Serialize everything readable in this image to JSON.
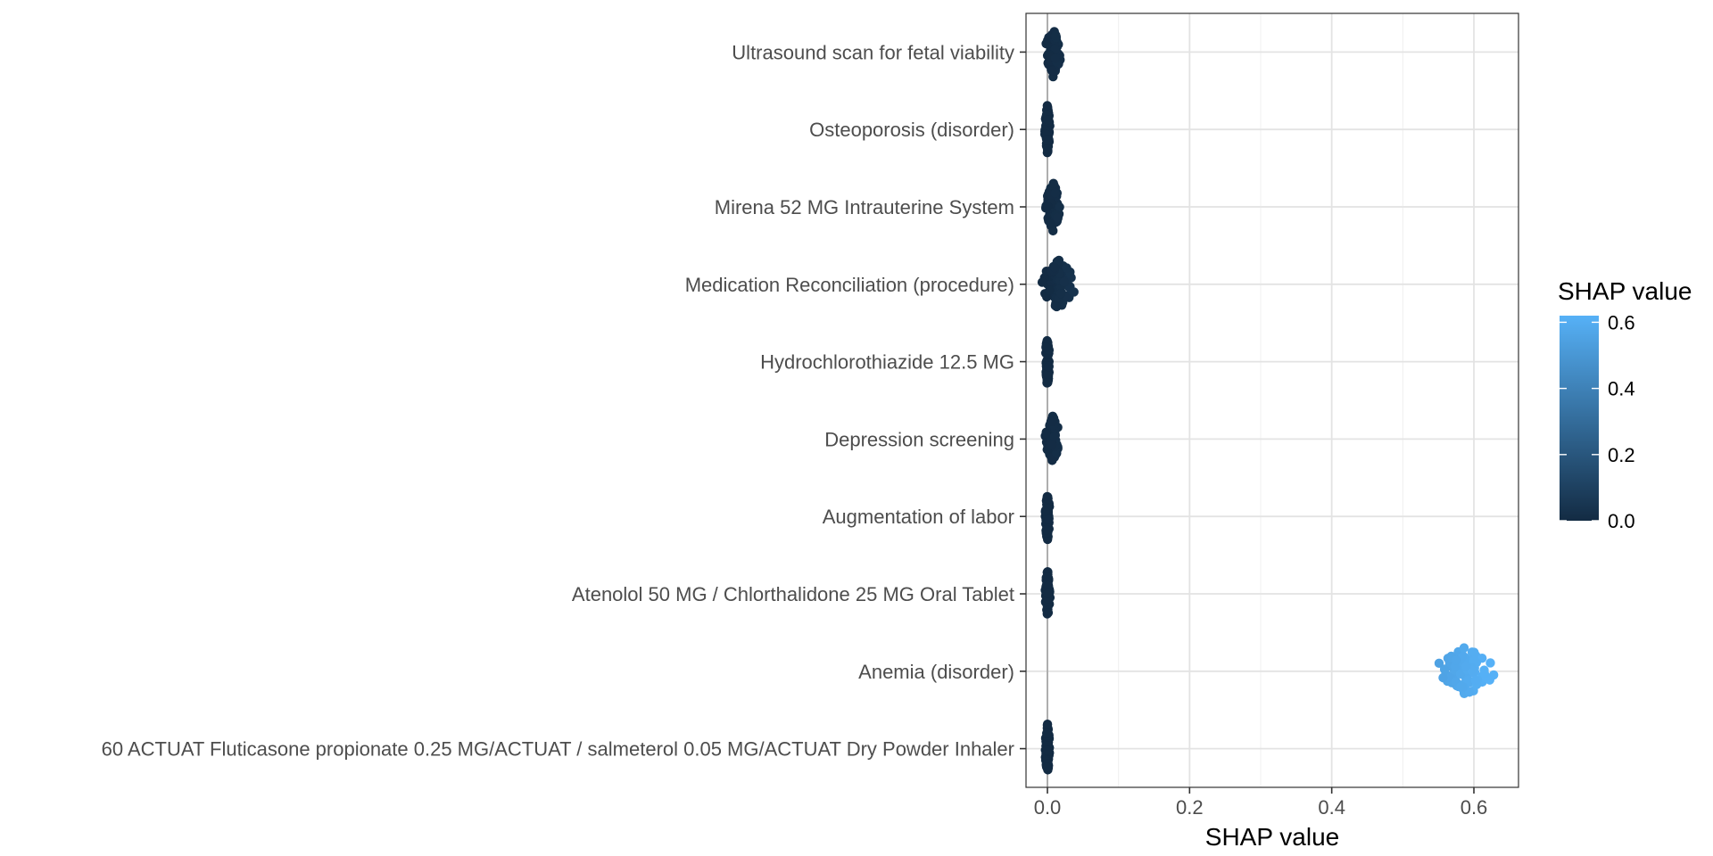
{
  "chart_data": {
    "type": "scatter",
    "subtype": "beeswarm",
    "title": "",
    "xlabel": "SHAP value",
    "ylabel": "",
    "xlim": [
      -0.03,
      0.66
    ],
    "x_ticks": [
      0.0,
      0.2,
      0.4,
      0.6
    ],
    "x_tick_labels": [
      "0.0",
      "0.2",
      "0.4",
      "0.6"
    ],
    "grid": true,
    "reference_line_x": 0.0,
    "legend": {
      "title": "SHAP value",
      "placement": "right",
      "ticks": [
        0.0,
        0.2,
        0.4,
        0.6
      ],
      "tick_labels": [
        "0.0",
        "0.2",
        "0.4",
        "0.6"
      ],
      "color_low": "#132B43",
      "color_high": "#56B1F7"
    },
    "features": [
      {
        "label": "Ultrasound scan for fetal viability",
        "center": 0.008,
        "spread": 0.012
      },
      {
        "label": "Osteoporosis (disorder)",
        "center": 0.0,
        "spread": 0.004
      },
      {
        "label": "Mirena 52 MG Intrauterine System",
        "center": 0.008,
        "spread": 0.012
      },
      {
        "label": "Medication Reconciliation (procedure)",
        "center": 0.015,
        "spread": 0.028
      },
      {
        "label": "Hydrochlorothiazide 12.5 MG",
        "center": 0.0,
        "spread": 0.004
      },
      {
        "label": "Depression screening",
        "center": 0.007,
        "spread": 0.012
      },
      {
        "label": "Augmentation of labor",
        "center": 0.0,
        "spread": 0.004
      },
      {
        "label": "Atenolol 50 MG / Chlorthalidone 25 MG Oral Tablet",
        "center": 0.0,
        "spread": 0.004
      },
      {
        "label": "Anemia (disorder)",
        "center": 0.59,
        "spread": 0.05
      },
      {
        "label": "60 ACTUAT Fluticasone propionate 0.25 MG/ACTUAT / salmeterol 0.05 MG/ACTUAT Dry Powder Inhaler",
        "center": 0.0,
        "spread": 0.004
      }
    ]
  }
}
